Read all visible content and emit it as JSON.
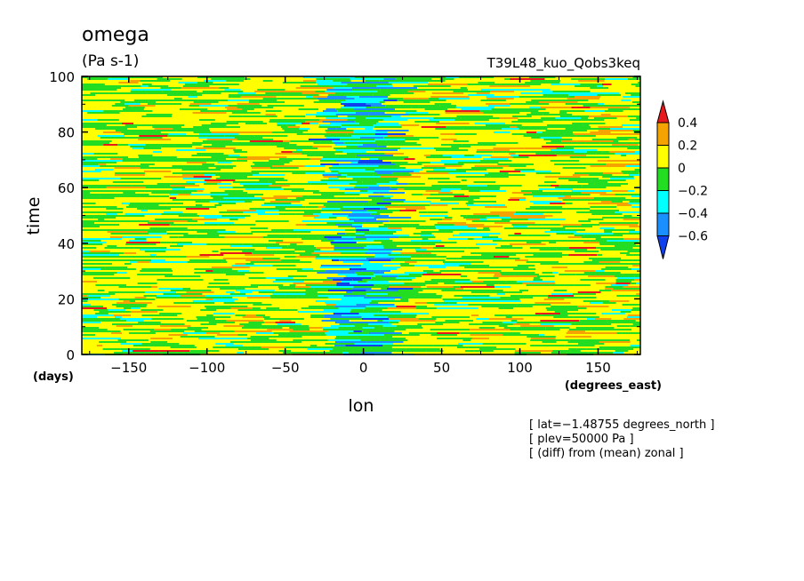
{
  "chart_data": {
    "type": "heatmap",
    "title": "omega",
    "units": "(Pa s-1)",
    "subtitle": "T39L48_kuo_Qobs3keq",
    "xlabel": "lon",
    "ylabel": "time",
    "x_units": "(degrees_east)",
    "y_units": "(days)",
    "xlim": [
      -180,
      177
    ],
    "ylim": [
      0,
      100
    ],
    "x_ticks": [
      -150,
      -100,
      -50,
      0,
      50,
      100,
      150
    ],
    "x_tick_labels": [
      "−150",
      "−100",
      "−50",
      "0",
      "50",
      "100",
      "150"
    ],
    "y_ticks": [
      0,
      20,
      40,
      60,
      80,
      100
    ],
    "y_tick_labels": [
      "0",
      "20",
      "40",
      "60",
      "80",
      "100"
    ],
    "colorbar": {
      "levels": [
        0.4,
        0.2,
        0,
        -0.2,
        -0.4,
        -0.6
      ],
      "labels": [
        "0.4",
        "0.2",
        "0",
        "−0.2",
        "−0.4",
        "−0.6"
      ],
      "colors": [
        "#e8191c",
        "#f5a300",
        "#ffff00",
        "#22dd22",
        "#00ffff",
        "#1a90ff",
        "#1040ee"
      ]
    },
    "annotations": [
      "[ lat=−1.48755 degrees_north ]",
      "[ plev=50000 Pa ]",
      "[ (diff) from (mean) zonal ]"
    ],
    "pattern": {
      "description_field": "zonal anomaly of omega along equator over 100 days",
      "negative_band_lon": 0,
      "negative_band_halfwidth_deg": 20,
      "background": "mixed yellow/green with scattered orange and cyan streaks"
    }
  }
}
